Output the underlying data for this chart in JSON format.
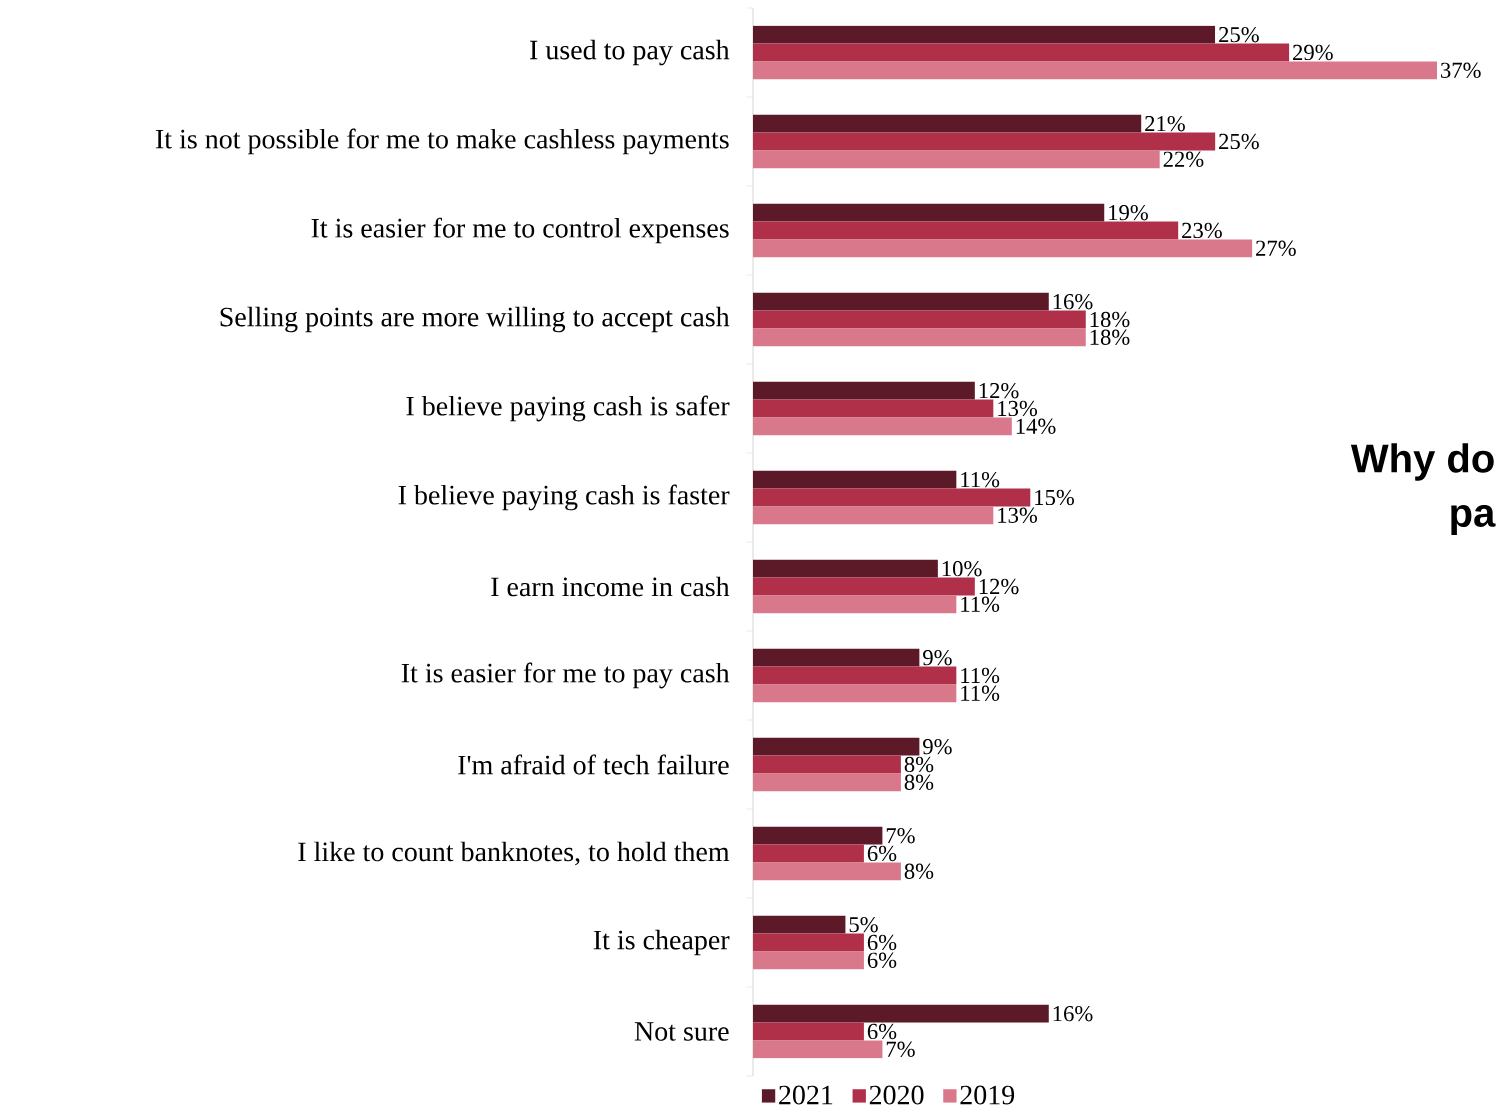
{
  "chart_data": {
    "type": "bar",
    "orientation": "horizontal",
    "categories": [
      "I used to pay cash",
      "It is not possible for me to make cashless payments",
      "It is easier for me to control expenses",
      "Selling points are more willing to accept cash",
      "I believe paying cash is safer",
      "I believe paying cash is faster",
      "I earn income in cash",
      "It is easier for me to pay cash",
      "I'm afraid of tech failure",
      "I like to count banknotes, to hold them",
      "It is cheaper",
      "Not sure"
    ],
    "series": [
      {
        "name": "2021",
        "color": "#5c1a28",
        "values": [
          25,
          21,
          19,
          16,
          12,
          11,
          10,
          9,
          9,
          7,
          5,
          16
        ],
        "value_labels": [
          "25%",
          "21%",
          "19%",
          "16%",
          "12%",
          "11%",
          "10%",
          "9%",
          "9%",
          "7%",
          "5%",
          "16%"
        ]
      },
      {
        "name": "2020",
        "color": "#b0304a",
        "values": [
          29,
          25,
          23,
          18,
          13,
          15,
          12,
          11,
          8,
          6,
          6,
          6
        ],
        "value_labels": [
          "29%",
          "25%",
          "23%",
          "18%",
          "13%",
          "15%",
          "12%",
          "11%",
          "8%",
          "6%",
          "6%",
          "6%"
        ]
      },
      {
        "name": "2019",
        "color": "#d9788a",
        "values": [
          37,
          22,
          27,
          18,
          14,
          13,
          11,
          11,
          8,
          8,
          6,
          7
        ],
        "value_labels": [
          "37%",
          "22%",
          "27%",
          "18%",
          "14%",
          "13%",
          "11%",
          "11%",
          "8%",
          "8%",
          "6%",
          "7%"
        ]
      }
    ],
    "legend": "bottom",
    "annotations": [
      "Why do",
      "pa"
    ]
  }
}
